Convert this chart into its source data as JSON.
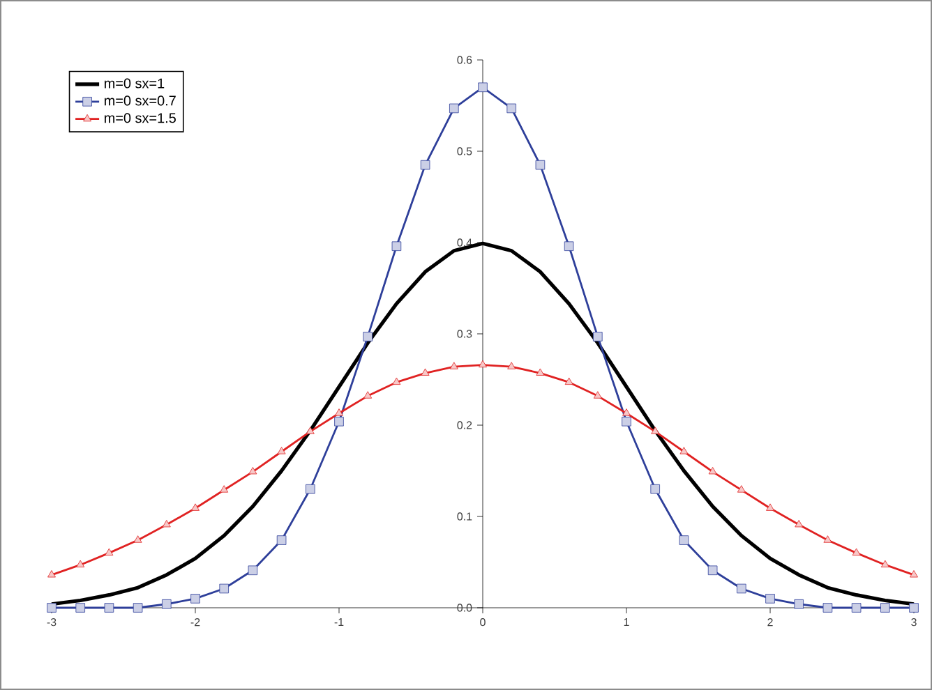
{
  "chart_data": {
    "type": "line",
    "xlim": [
      -3,
      3
    ],
    "ylim": [
      0,
      0.6
    ],
    "xticks": [
      -3,
      -2,
      -1,
      0,
      1,
      2,
      3
    ],
    "yticks": [
      {
        "value": 0,
        "label": "0.0"
      },
      0.1,
      0.2,
      0.3,
      0.4,
      0.5,
      0.6
    ],
    "legend": "top left",
    "grid": false,
    "x": [
      -3,
      -2.8,
      -2.6,
      -2.4,
      -2.2,
      -2,
      -1.8,
      -1.6,
      -1.4,
      -1.2,
      -1,
      -0.8,
      -0.6,
      -0.4,
      -0.2,
      0,
      0.2,
      0.4,
      0.6,
      0.8,
      1,
      1.2,
      1.4,
      1.6,
      1.8,
      2,
      2.2,
      2.4,
      2.6,
      2.8,
      3
    ],
    "series": [
      {
        "name": "m=0 sx=1",
        "color": "#000000",
        "marker": "none",
        "values": [
          0.004,
          0.008,
          0.014,
          0.022,
          0.036,
          0.054,
          0.079,
          0.111,
          0.15,
          0.194,
          0.242,
          0.29,
          0.333,
          0.368,
          0.391,
          0.399,
          0.391,
          0.368,
          0.333,
          0.29,
          0.242,
          0.194,
          0.15,
          0.111,
          0.079,
          0.054,
          0.036,
          0.022,
          0.014,
          0.008,
          0.004
        ]
      },
      {
        "name": "m=0 sx=0.7",
        "color": "#2e3f9a",
        "marker": "square",
        "values": [
          0,
          0,
          0,
          0,
          0.004,
          0.01,
          0.021,
          0.041,
          0.074,
          0.13,
          0.204,
          0.297,
          0.396,
          0.485,
          0.547,
          0.57,
          0.547,
          0.485,
          0.396,
          0.297,
          0.204,
          0.13,
          0.074,
          0.041,
          0.021,
          0.01,
          0.004,
          0,
          0,
          0,
          0
        ]
      },
      {
        "name": "m=0 sx=1.5",
        "color": "#e02222",
        "marker": "triangle",
        "values": [
          0.036,
          0.047,
          0.06,
          0.074,
          0.091,
          0.109,
          0.129,
          0.149,
          0.171,
          0.193,
          0.213,
          0.232,
          0.247,
          0.257,
          0.264,
          0.266,
          0.264,
          0.257,
          0.247,
          0.232,
          0.213,
          0.193,
          0.171,
          0.149,
          0.129,
          0.109,
          0.091,
          0.074,
          0.06,
          0.047,
          0.036
        ]
      }
    ]
  }
}
